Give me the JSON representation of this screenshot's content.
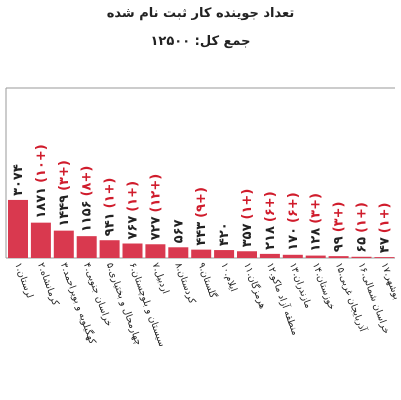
{
  "header": {
    "title": "تعداد جوینده کار ثبت نام شده",
    "total": "جمع کل: ۱۲۵۰۰"
  },
  "chart_data": {
    "type": "bar",
    "title": "تعداد جوینده کار ثبت نام شده",
    "subtitle": "جمع کل: ۱۲۵۰۰",
    "xlabel": "",
    "ylabel": "",
    "ylim": [
      0,
      9000
    ],
    "grid": false,
    "bar_color": "#d9394f",
    "categories": [
      "۱.لرستان",
      "۲.کرمانشاه",
      "۳.کهگیلویه و بویراحمد",
      "۴.خراسان جنوبی",
      "۵.چهارمحال و بختیاری",
      "۶.سیستان و بلوچستان",
      "۷.اردبیل",
      "۸.کردستان",
      "۹.گلستان",
      "۱۰.ایلام",
      "۱۱.هرمزگان",
      "۱۲.منطقه آزاد ماکو",
      "۱۳.مازندران",
      "۱۴.خوزستان",
      "۱۵.آذربایجان غربی",
      "۱۶.خراسان شمالی",
      "۱۷.بوشهر"
    ],
    "values": [
      3074,
      1871,
      1449,
      1156,
      941,
      767,
      727,
      567,
      443,
      420,
      357,
      218,
      170,
      128,
      99,
      65,
      47
    ],
    "value_labels": [
      "۳۰۷۴",
      "۱۸۷۱",
      "۱۴۴۹",
      "۱۱۵۶",
      "۹۴۱",
      "۷۶۷",
      "۷۲۷",
      "۵۶۷",
      "۴۴۳",
      "۴۲۰",
      "۳۵۷",
      "۲۱۸",
      "۱۷۰",
      "۱۲۸",
      "۹۹",
      "۶۵",
      "۴۷"
    ],
    "change_labels": [
      "",
      "(۱۰+)",
      "(۳+)",
      "(۸+)",
      "(۱+)",
      "(۱+)",
      "(۱۲+)",
      "",
      "(۹+)",
      "",
      "(۱+)",
      "(۶+)",
      "(۶+)",
      "(۳+)",
      "(۳+)",
      "(۱+)",
      "(۱+)"
    ],
    "change_color": "#d01c2c"
  }
}
